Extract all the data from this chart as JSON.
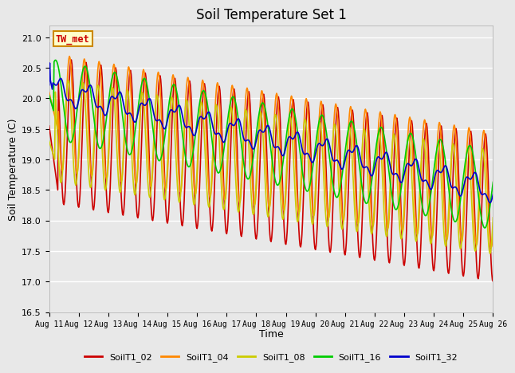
{
  "title": "Soil Temperature Set 1",
  "xlabel": "Time",
  "ylabel": "Soil Temperature (C)",
  "ylim": [
    16.5,
    21.2
  ],
  "xlim": [
    0,
    15
  ],
  "xtick_labels": [
    "Aug 11",
    "Aug 12",
    "Aug 13",
    "Aug 14",
    "Aug 15",
    "Aug 16",
    "Aug 17",
    "Aug 18",
    "Aug 19",
    "Aug 20",
    "Aug 21",
    "Aug 22",
    "Aug 23",
    "Aug 24",
    "Aug 25",
    "Aug 26"
  ],
  "ytick_values": [
    16.5,
    17.0,
    17.5,
    18.0,
    18.5,
    19.0,
    19.5,
    20.0,
    20.5,
    21.0
  ],
  "background_color": "#e8e8e8",
  "plot_background": "#e8e8e8",
  "grid_color": "#ffffff",
  "annotation_text": "TW_met",
  "annotation_color": "#cc0000",
  "annotation_bg": "#ffffcc",
  "annotation_border": "#cc8800",
  "series": {
    "SoilT1_02": {
      "color": "#cc0000",
      "linewidth": 1.2
    },
    "SoilT1_04": {
      "color": "#ff8800",
      "linewidth": 1.2
    },
    "SoilT1_08": {
      "color": "#cccc00",
      "linewidth": 1.2
    },
    "SoilT1_16": {
      "color": "#00cc00",
      "linewidth": 1.2
    },
    "SoilT1_32": {
      "color": "#0000cc",
      "linewidth": 1.2
    }
  },
  "legend_colors": [
    "#cc0000",
    "#ff8800",
    "#cccc00",
    "#00cc00",
    "#0000cc"
  ],
  "legend_labels": [
    "SoilT1_02",
    "SoilT1_04",
    "SoilT1_08",
    "SoilT1_16",
    "SoilT1_32"
  ]
}
